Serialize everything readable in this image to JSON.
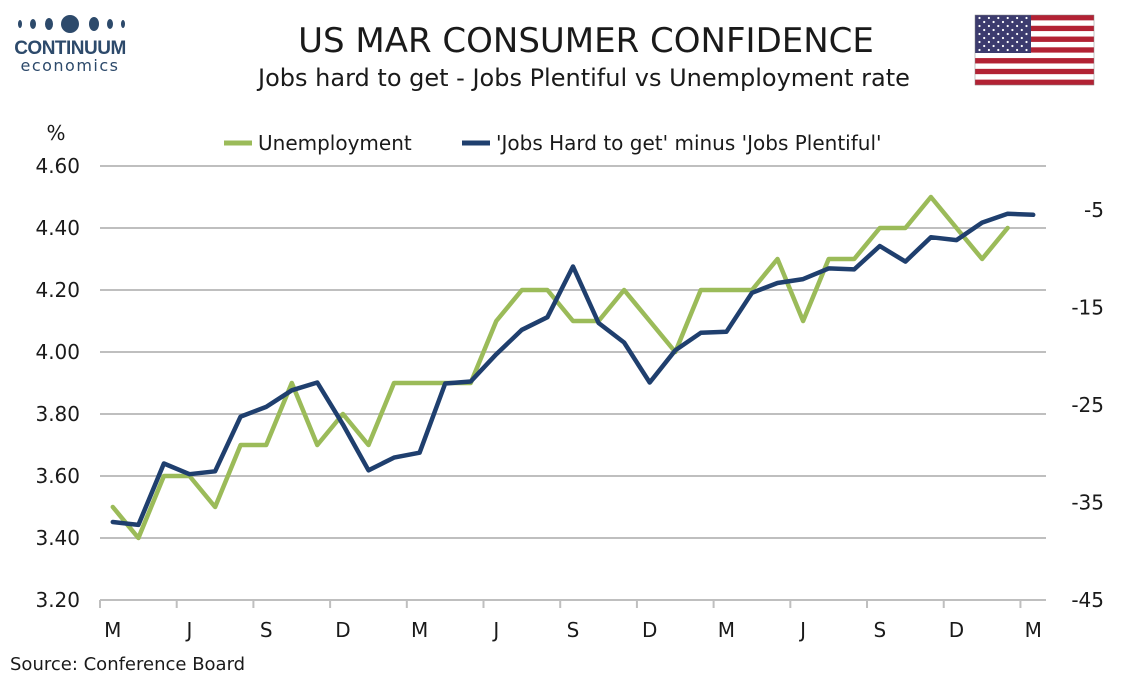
{
  "header": {
    "logo_name": "CONTINUUM",
    "logo_sub": "economics",
    "logo_color": "#2d4a6b",
    "flag_icon": "us-flag-icon"
  },
  "footer": {
    "source": "Source: Conference Board"
  },
  "chart_data": {
    "type": "line",
    "title": "US MAR CONSUMER CONFIDENCE",
    "subtitle": "Jobs hard to get - Jobs Plentiful vs Unemployment rate",
    "left_axis_unit": "%",
    "x_tick_labels": [
      "M",
      "J",
      "S",
      "D",
      "M",
      "J",
      "S",
      "D",
      "M",
      "J",
      "S",
      "D",
      "M"
    ],
    "left_axis": {
      "ylim": [
        3.2,
        4.6
      ],
      "ticks": [
        "3.20",
        "3.40",
        "3.60",
        "3.80",
        "4.00",
        "4.20",
        "4.40",
        "4.60"
      ]
    },
    "right_axis": {
      "ylim": [
        -45,
        -0.5
      ],
      "ticks": [
        "-45",
        "-35",
        "-25",
        "-15",
        "-5"
      ]
    },
    "grid": true,
    "legend_position": "top",
    "series": [
      {
        "name": "Unemployment",
        "axis": "left",
        "color": "#9bbb59",
        "values": [
          3.5,
          3.4,
          3.6,
          3.6,
          3.5,
          3.7,
          3.7,
          3.9,
          3.7,
          3.8,
          3.7,
          3.9,
          3.9,
          3.9,
          3.9,
          4.1,
          4.2,
          4.2,
          4.1,
          4.1,
          4.2,
          4.1,
          4.0,
          4.2,
          4.2,
          4.2,
          4.3,
          4.1,
          4.3,
          4.3,
          4.4,
          4.4,
          4.5,
          4.4,
          4.3,
          4.4
        ]
      },
      {
        "name": "'Jobs Hard to get' minus 'Jobs Plentiful'",
        "axis": "right",
        "color": "#1f3f6e",
        "values": [
          -37.0,
          -37.3,
          -31.0,
          -32.1,
          -31.8,
          -26.2,
          -25.2,
          -23.5,
          -22.7,
          -27.0,
          -31.7,
          -30.4,
          -29.9,
          -22.8,
          -22.6,
          -19.8,
          -17.3,
          -16.0,
          -10.8,
          -16.6,
          -18.6,
          -22.7,
          -19.4,
          -17.6,
          -17.5,
          -13.5,
          -12.5,
          -12.1,
          -11.0,
          -11.1,
          -8.7,
          -10.3,
          -7.8,
          -8.1,
          -6.3,
          -5.4,
          -5.5
        ]
      }
    ]
  }
}
